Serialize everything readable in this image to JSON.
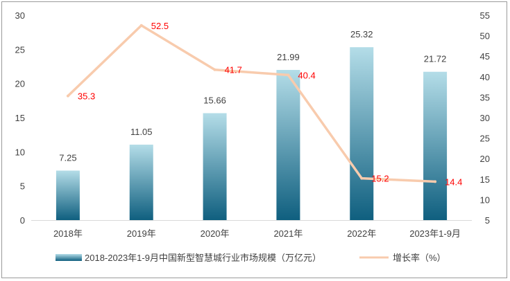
{
  "chart_data": {
    "type": "bar+line",
    "categories": [
      "2018年",
      "2019年",
      "2020年",
      "2021年",
      "2022年",
      "2023年1-9月"
    ],
    "series": [
      {
        "name": "2018-2023年1-9月中国新型智慧城行业市场规模（万亿元）",
        "type": "bar",
        "axis": "left",
        "values": [
          7.25,
          11.05,
          15.66,
          21.99,
          25.32,
          21.72
        ],
        "labels": [
          "7.25",
          "11.05",
          "15.66",
          "21.99",
          "25.32",
          "21.72"
        ]
      },
      {
        "name": "增长率（%）",
        "type": "line",
        "axis": "right",
        "values": [
          35.3,
          52.5,
          41.7,
          40.4,
          15.2,
          14.4
        ],
        "labels": [
          "35.3",
          "52.5",
          "41.7",
          "40.4",
          "15.2",
          "14.4"
        ]
      }
    ],
    "ylim_left": [
      0,
      30
    ],
    "yticks_left": [
      "0",
      "5",
      "10",
      "15",
      "20",
      "25",
      "30"
    ],
    "ylim_right": [
      5,
      55
    ],
    "yticks_right": [
      "5",
      "10",
      "15",
      "20",
      "25",
      "30",
      "35",
      "40",
      "45",
      "50",
      "55"
    ],
    "grid": false,
    "legend_position": "bottom",
    "colors": {
      "bar_top": "#b4dde8",
      "bar_bottom": "#0f5f7f",
      "line": "#f8cbad",
      "rate_label": "#ff0000",
      "axis": "#d9d9d9"
    }
  }
}
